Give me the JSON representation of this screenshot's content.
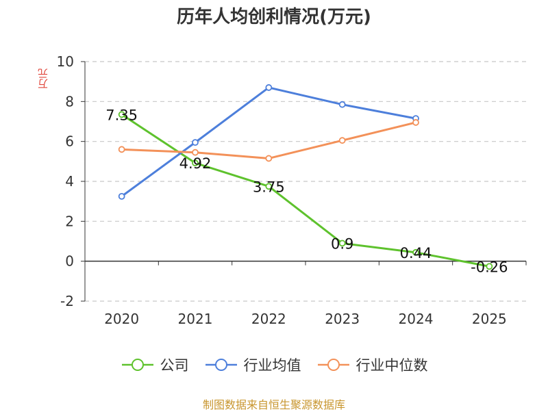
{
  "title": "历年人均创利情况(万元)",
  "source": "制图数据来自恒生聚源数据库",
  "chart_data": {
    "type": "line",
    "title": "历年人均创利情况(万元)",
    "xlabel": "",
    "ylabel": "万元",
    "categories": [
      "2020",
      "2021",
      "2022",
      "2023",
      "2024",
      "2025"
    ],
    "ylim": [
      -2,
      10
    ],
    "yticks": [
      "-2",
      "0",
      "2",
      "4",
      "6",
      "8",
      "10"
    ],
    "grid": true,
    "legend_position": "bottom",
    "series": [
      {
        "name": "公司",
        "color": "#5ec22d",
        "values": [
          7.35,
          4.92,
          3.75,
          0.9,
          0.44,
          -0.26
        ],
        "labels": [
          "7.35",
          "4.92",
          "3.75",
          "0.9",
          "0.44",
          "-0.26"
        ]
      },
      {
        "name": "行业均值",
        "color": "#4d7fdb",
        "values": [
          3.25,
          5.95,
          8.7,
          7.85,
          7.15,
          null
        ]
      },
      {
        "name": "行业中位数",
        "color": "#f39159",
        "values": [
          5.6,
          5.45,
          5.15,
          6.05,
          6.95,
          null
        ]
      }
    ]
  }
}
